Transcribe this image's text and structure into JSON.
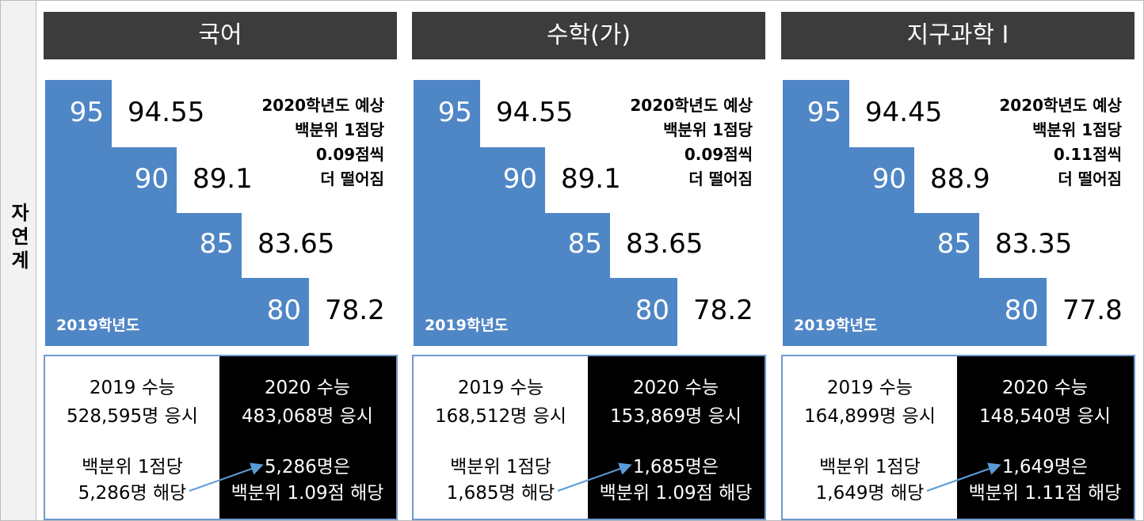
{
  "side_label": "자연계",
  "panels": [
    {
      "title": "국어",
      "steps": [
        {
          "pct": "95",
          "score": "94.55"
        },
        {
          "pct": "90",
          "score": "89.1"
        },
        {
          "pct": "85",
          "score": "83.65"
        },
        {
          "pct": "80",
          "score": "78.2"
        }
      ],
      "base_label": "2019학년도",
      "note": [
        "2020학년도 예상",
        "백분위 1점당",
        "0.09점씩",
        "더 떨어짐"
      ],
      "left": {
        "title": "2019 수능",
        "count": "528,595명 응시",
        "line1": "백분위 1점당",
        "line2": "5,286명 해당"
      },
      "right": {
        "title": "2020 수능",
        "count": "483,068명 응시",
        "line1": "5,286명은",
        "line2": "백분위 1.09점 해당"
      }
    },
    {
      "title": "수학(가)",
      "steps": [
        {
          "pct": "95",
          "score": "94.55"
        },
        {
          "pct": "90",
          "score": "89.1"
        },
        {
          "pct": "85",
          "score": "83.65"
        },
        {
          "pct": "80",
          "score": "78.2"
        }
      ],
      "base_label": "2019학년도",
      "note": [
        "2020학년도 예상",
        "백분위 1점당",
        "0.09점씩",
        "더 떨어짐"
      ],
      "left": {
        "title": "2019 수능",
        "count": "168,512명 응시",
        "line1": "백분위 1점당",
        "line2": "1,685명 해당"
      },
      "right": {
        "title": "2020 수능",
        "count": "153,869명 응시",
        "line1": "1,685명은",
        "line2": "백분위 1.09점 해당"
      }
    },
    {
      "title": "지구과학 I",
      "steps": [
        {
          "pct": "95",
          "score": "94.45"
        },
        {
          "pct": "90",
          "score": "88.9"
        },
        {
          "pct": "85",
          "score": "83.35"
        },
        {
          "pct": "80",
          "score": "77.8"
        }
      ],
      "base_label": "2019학년도",
      "note": [
        "2020학년도 예상",
        "백분위 1점당",
        "0.11점씩",
        "더 떨어짐"
      ],
      "left": {
        "title": "2019 수능",
        "count": "164,899명 응시",
        "line1": "백분위 1점당",
        "line2": "1,649명 해당"
      },
      "right": {
        "title": "2020 수능",
        "count": "148,540명 응시",
        "line1": "1,649명은",
        "line2": "백분위 1.11점 해당"
      }
    }
  ]
}
